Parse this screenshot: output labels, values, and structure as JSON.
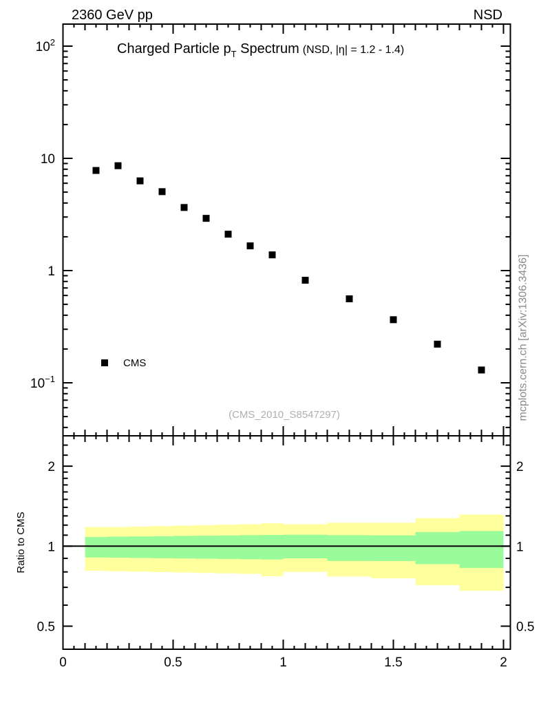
{
  "header": {
    "left": "2360 GeV pp",
    "right": "NSD"
  },
  "branding": {
    "site_ref": "mcplots.cern.ch [arXiv:1306.3436]",
    "analysis_ref": "(CMS_2010_S8547297)"
  },
  "chart_data": {
    "type": "scatter",
    "title": {
      "parts": [
        {
          "text": "Charged Particle p"
        },
        {
          "text": "T",
          "style": "subscript"
        },
        {
          "text": " Spectrum"
        },
        {
          "text": "(NSD, |η| = 1.2 - 1.4)",
          "style": "small"
        }
      ]
    },
    "x": {
      "lim": [
        0,
        2.031
      ],
      "ticks": [
        {
          "v": 0,
          "label": "0"
        },
        {
          "v": 0.5,
          "label": "0.5"
        },
        {
          "v": 1,
          "label": "1"
        },
        {
          "v": 1.5,
          "label": "1.5"
        },
        {
          "v": 2,
          "label": "2"
        }
      ],
      "minor_step": 0.05
    },
    "top_panel": {
      "scale": "log",
      "ylim": [
        0.034,
        156
      ],
      "yticks": [
        {
          "v": 100,
          "label": "10^2"
        },
        {
          "v": 10,
          "label": "10"
        },
        {
          "v": 1,
          "label": "1"
        },
        {
          "v": 0.1,
          "label": "10^-1"
        }
      ],
      "legend": {
        "label": "CMS"
      },
      "series": [
        {
          "name": "CMS",
          "marker": "filled-square",
          "color": "#000000",
          "x": [
            0.15,
            0.25,
            0.35,
            0.45,
            0.55,
            0.65,
            0.75,
            0.85,
            0.95,
            1.1,
            1.3,
            1.5,
            1.7,
            1.9
          ],
          "y": [
            7.8,
            8.6,
            6.3,
            5.05,
            3.65,
            2.92,
            2.11,
            1.66,
            1.38,
            0.82,
            0.56,
            0.365,
            0.221,
            0.13
          ]
        }
      ]
    },
    "ratio_panel": {
      "ylabel": "Ratio to CMS",
      "scale": "log",
      "ylim": [
        0.41,
        2.6
      ],
      "yticks": [
        {
          "v": 2,
          "label": "2"
        },
        {
          "v": 1,
          "label": "1"
        },
        {
          "v": 0.5,
          "label": "0.5"
        }
      ],
      "minor_ticks": [
        0.6,
        0.7,
        0.8,
        0.9,
        1.1,
        1.2,
        1.3,
        1.4,
        1.5,
        1.6,
        1.7,
        1.8,
        1.9,
        2.2,
        2.4
      ],
      "ref_line": 1,
      "bin_edges": [
        0.1,
        0.2,
        0.3,
        0.4,
        0.5,
        0.6,
        0.7,
        0.8,
        0.9,
        1.0,
        1.2,
        1.4,
        1.6,
        1.8,
        2.0
      ],
      "bands": {
        "outer": {
          "color": "#ffff9e",
          "hi": [
            1.18,
            1.18,
            1.185,
            1.19,
            1.195,
            1.2,
            1.205,
            1.21,
            1.22,
            1.21,
            1.225,
            1.225,
            1.275,
            1.315
          ],
          "lo": [
            0.808,
            0.805,
            0.802,
            0.799,
            0.796,
            0.793,
            0.79,
            0.787,
            0.771,
            0.8,
            0.769,
            0.757,
            0.713,
            0.679
          ]
        },
        "inner": {
          "color": "#99fb99",
          "hi": [
            1.083,
            1.086,
            1.088,
            1.09,
            1.093,
            1.095,
            1.097,
            1.1,
            1.102,
            1.104,
            1.1,
            1.098,
            1.13,
            1.14
          ],
          "lo": [
            0.907,
            0.905,
            0.903,
            0.901,
            0.899,
            0.897,
            0.895,
            0.893,
            0.891,
            0.9,
            0.88,
            0.879,
            0.856,
            0.828
          ]
        }
      }
    },
    "colors": {
      "axis": "#000000",
      "watermark": "#b0b0b0",
      "site_ref": "#8a8a8a"
    }
  }
}
